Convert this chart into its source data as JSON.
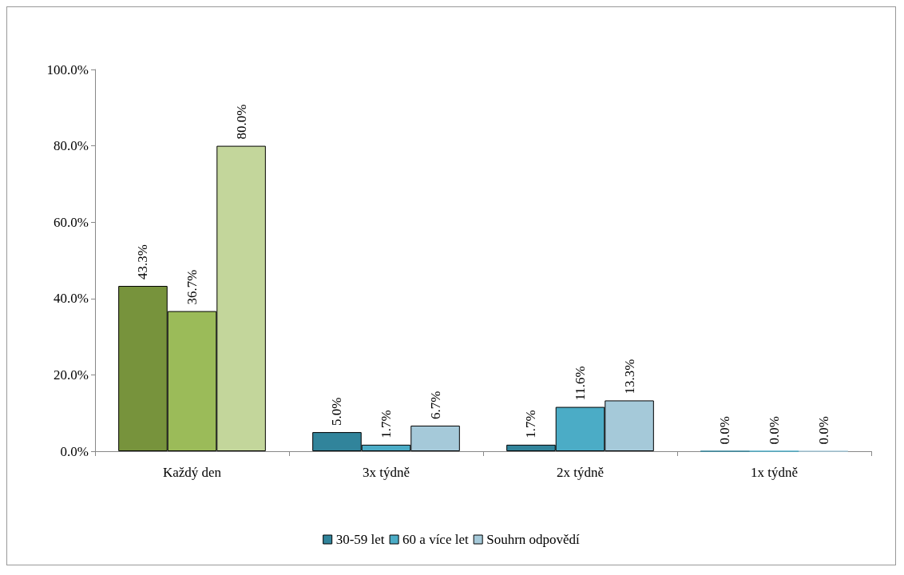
{
  "chart_data": {
    "type": "bar",
    "categories": [
      "Každý den",
      "3x týdně",
      "2x týdně",
      "1x týdně"
    ],
    "series": [
      {
        "name": "30-59 let",
        "color": "#31849b",
        "colors": [
          "#77933c",
          "#31849b",
          "#31849b",
          "#31849b"
        ],
        "values": [
          43.3,
          5.0,
          1.7,
          0.0
        ],
        "value_labels": [
          "43.3%",
          "5.0%",
          "1.7%",
          "0.0%"
        ]
      },
      {
        "name": "60 a více let",
        "color": "#4bacc6",
        "colors": [
          "#9bbb59",
          "#4bacc6",
          "#4bacc6",
          "#4bacc6"
        ],
        "values": [
          36.7,
          1.7,
          11.6,
          0.0
        ],
        "value_labels": [
          "36.7%",
          "1.7%",
          "11.6%",
          "0.0%"
        ]
      },
      {
        "name": "Souhrn odpovědí",
        "color": "#a5c9d9",
        "colors": [
          "#c3d69b",
          "#a5c9d9",
          "#a5c9d9",
          "#a5c9d9"
        ],
        "values": [
          80.0,
          6.7,
          13.3,
          0.0
        ],
        "value_labels": [
          "80.0%",
          "6.7%",
          "13.3%",
          "0.0%"
        ]
      }
    ],
    "ylim": [
      0,
      100
    ],
    "yticks": [
      {
        "value": 0,
        "label": "0.0%"
      },
      {
        "value": 20,
        "label": "20.0%"
      },
      {
        "value": 40,
        "label": "40.0%"
      },
      {
        "value": 60,
        "label": "60.0%"
      },
      {
        "value": 80,
        "label": "80.0%"
      },
      {
        "value": 100,
        "label": "100.0%"
      }
    ],
    "grid": false,
    "legend": "bottom"
  }
}
